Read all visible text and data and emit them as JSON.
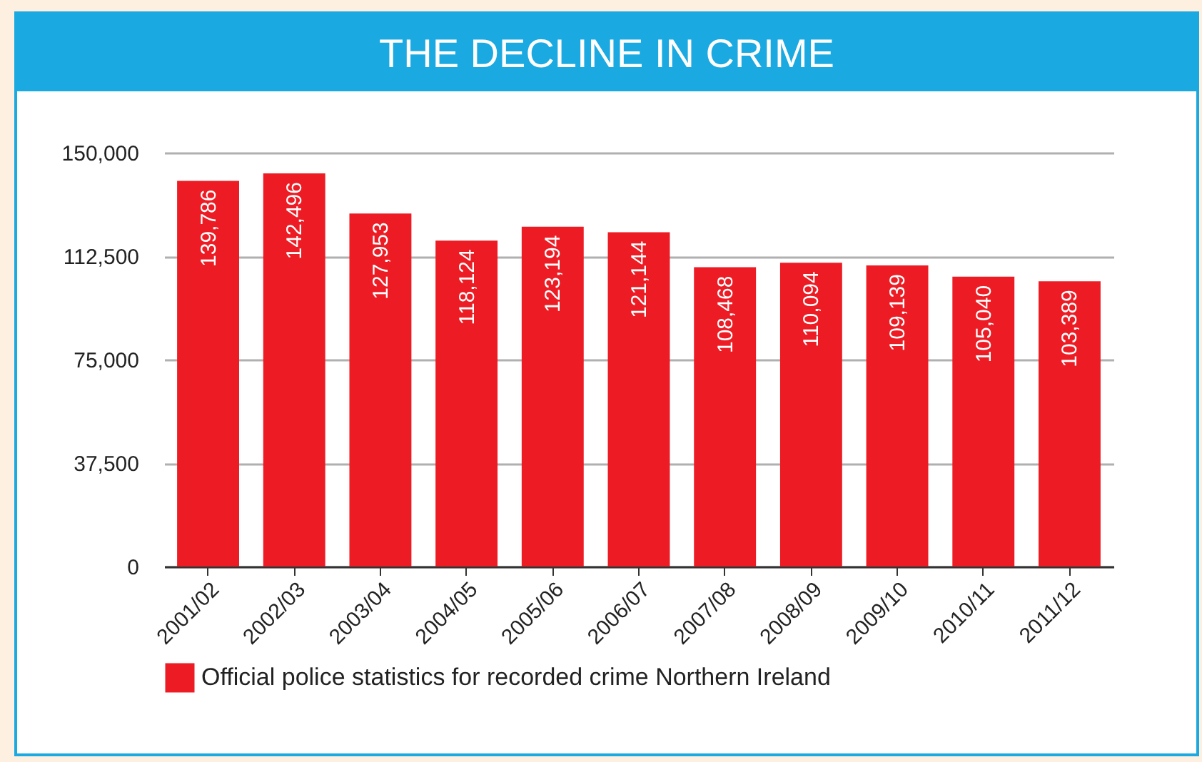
{
  "chart_data": {
    "type": "bar",
    "title": "THE DECLINE IN CRIME",
    "categories": [
      "2001/02",
      "2002/03",
      "2003/04",
      "2004/05",
      "2005/06",
      "2006/07",
      "2007/08",
      "2008/09",
      "2009/10",
      "2010/11",
      "2011/12"
    ],
    "series": [
      {
        "name": "Official police statistics for recorded crime Northern Ireland",
        "color": "#ed1c24",
        "values": [
          139786,
          142496,
          127953,
          118124,
          123194,
          121144,
          108468,
          110094,
          109139,
          105040,
          103389
        ],
        "value_labels": [
          "139,786",
          "142,496",
          "127,953",
          "118,124",
          "123,194",
          "121,144",
          "108,468",
          "110,094",
          "109,139",
          "105,040",
          "103,389"
        ]
      }
    ],
    "ylim": [
      0,
      150000
    ],
    "yticks": [
      0,
      {
        "value": 37500,
        "label": "37,500"
      },
      {
        "value": 75000,
        "label": "75,000"
      },
      {
        "value": 112500,
        "label": "112,500"
      },
      {
        "value": 150000,
        "label": "150,000"
      }
    ],
    "grid": "y",
    "legend": "bottom"
  }
}
